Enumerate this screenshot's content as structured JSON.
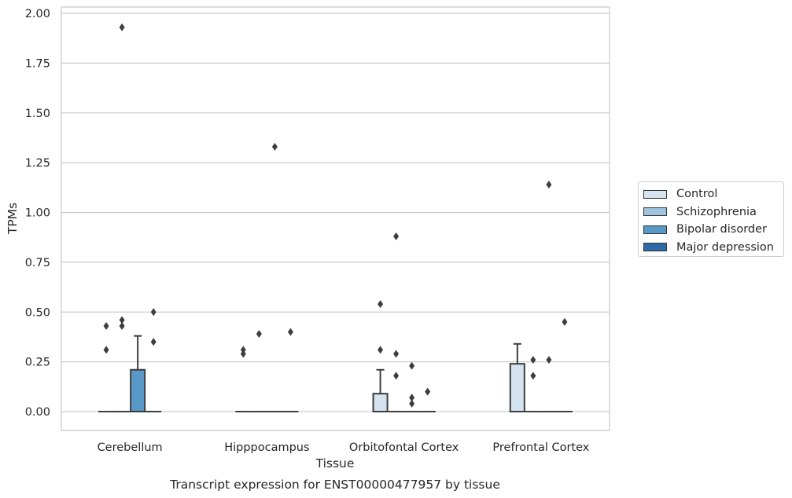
{
  "chart_data": {
    "type": "box",
    "xlabel": "Tissue",
    "ylabel": "TPMs",
    "caption": "Transcript expression for ENST00000477957 by tissue",
    "categories": [
      "Cerebellum",
      "Hipppocampus",
      "Orbitofontal Cortex",
      "Prefrontal Cortex"
    ],
    "ylim": [
      -0.1,
      2.02
    ],
    "yticks": [
      "0.00",
      "0.25",
      "0.50",
      "0.75",
      "1.00",
      "1.25",
      "1.50",
      "1.75",
      "2.00"
    ],
    "grid": true,
    "legend_position": "right",
    "series": [
      {
        "name": "Control",
        "color": "#d5e3f1",
        "boxes": [
          {
            "q1": 0,
            "median": 0,
            "q3": 0,
            "whisker_low": 0,
            "whisker_high": 0,
            "outliers": [
              0.31,
              0.43
            ]
          },
          {
            "q1": 0,
            "median": 0,
            "q3": 0,
            "whisker_low": 0,
            "whisker_high": 0,
            "outliers": [
              0.29,
              0.31
            ]
          },
          {
            "q1": 0,
            "median": 0,
            "q3": 0.09,
            "whisker_low": 0,
            "whisker_high": 0.21,
            "outliers": [
              0.31,
              0.54
            ]
          },
          {
            "q1": 0,
            "median": 0,
            "q3": 0.24,
            "whisker_low": 0,
            "whisker_high": 0.34,
            "outliers": []
          }
        ]
      },
      {
        "name": "Schizophrenia",
        "color": "#9dc3df",
        "boxes": [
          {
            "q1": 0,
            "median": 0,
            "q3": 0,
            "whisker_low": 0,
            "whisker_high": 0,
            "outliers": [
              0.43,
              0.46,
              1.93
            ]
          },
          {
            "q1": 0,
            "median": 0,
            "q3": 0,
            "whisker_low": 0,
            "whisker_high": 0,
            "outliers": [
              0.39
            ]
          },
          {
            "q1": 0,
            "median": 0,
            "q3": 0,
            "whisker_low": 0,
            "whisker_high": 0,
            "outliers": [
              0.18,
              0.29,
              0.88
            ]
          },
          {
            "q1": 0,
            "median": 0,
            "q3": 0,
            "whisker_low": 0,
            "whisker_high": 0,
            "outliers": [
              0.18,
              0.26
            ]
          }
        ]
      },
      {
        "name": "Bipolar disorder",
        "color": "#5899c7",
        "boxes": [
          {
            "q1": 0,
            "median": 0,
            "q3": 0.21,
            "whisker_low": 0,
            "whisker_high": 0.38,
            "outliers": []
          },
          {
            "q1": 0,
            "median": 0,
            "q3": 0,
            "whisker_low": 0,
            "whisker_high": 0,
            "outliers": [
              1.33
            ]
          },
          {
            "q1": 0,
            "median": 0,
            "q3": 0,
            "whisker_low": 0,
            "whisker_high": 0,
            "outliers": [
              0.04,
              0.07,
              0.23
            ]
          },
          {
            "q1": 0,
            "median": 0,
            "q3": 0,
            "whisker_low": 0,
            "whisker_high": 0,
            "outliers": [
              0.26,
              1.14
            ]
          }
        ]
      },
      {
        "name": "Major depression",
        "color": "#2d6aa8",
        "boxes": [
          {
            "q1": 0,
            "median": 0,
            "q3": 0,
            "whisker_low": 0,
            "whisker_high": 0,
            "outliers": [
              0.35,
              0.5
            ]
          },
          {
            "q1": 0,
            "median": 0,
            "q3": 0,
            "whisker_low": 0,
            "whisker_high": 0,
            "outliers": [
              0.4
            ]
          },
          {
            "q1": 0,
            "median": 0,
            "q3": 0,
            "whisker_low": 0,
            "whisker_high": 0,
            "outliers": [
              0.1
            ]
          },
          {
            "q1": 0,
            "median": 0,
            "q3": 0,
            "whisker_low": 0,
            "whisker_high": 0,
            "outliers": [
              0.45
            ]
          }
        ]
      }
    ]
  }
}
